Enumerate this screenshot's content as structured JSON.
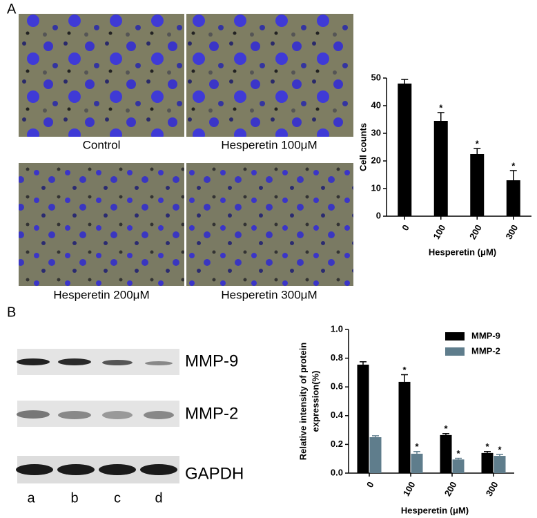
{
  "panels": {
    "a": "A",
    "b": "B"
  },
  "images": {
    "captions": [
      "Control",
      "Hesperetin 100μM",
      "Hesperetin 200μM",
      "Hesperetin 300μM"
    ]
  },
  "blot": {
    "bands": [
      "MMP-9",
      "MMP-2",
      "GAPDH"
    ],
    "lanes": [
      "a",
      "b",
      "c",
      "d"
    ]
  },
  "chart_data": [
    {
      "type": "bar",
      "xlabel": "Hesperetin (μM)",
      "ylabel": "Cell counts",
      "categories": [
        "0",
        "100",
        "200",
        "300"
      ],
      "values": [
        48,
        34.5,
        22.5,
        13
      ],
      "errors": [
        1.5,
        3,
        2,
        3.5
      ],
      "significance": [
        null,
        "*",
        "*",
        "*"
      ],
      "color": "#000000",
      "ylim": [
        0,
        50
      ],
      "yticks": [
        0,
        10,
        20,
        30,
        40,
        50
      ]
    },
    {
      "type": "bar",
      "xlabel": "Hesperetin (μM)",
      "ylabel": [
        "Relative intensity of protein",
        "expression(%)"
      ],
      "categories": [
        "0",
        "100",
        "200",
        "300"
      ],
      "legend": "upper right",
      "series": [
        {
          "name": "MMP-9",
          "color": "#000000",
          "values": [
            0.755,
            0.635,
            0.265,
            0.14
          ],
          "errors": [
            0.02,
            0.05,
            0.01,
            0.01
          ],
          "significance": [
            null,
            "*",
            "*",
            "*"
          ]
        },
        {
          "name": "MMP-2",
          "color": "#5f7d8c",
          "values": [
            0.25,
            0.135,
            0.095,
            0.12
          ],
          "errors": [
            0.01,
            0.015,
            0.008,
            0.01
          ],
          "significance": [
            null,
            "*",
            "*",
            "*"
          ]
        }
      ],
      "ylim": [
        0,
        1
      ],
      "yticks": [
        {
          "value": 0,
          "label": "0.0"
        },
        0.2,
        0.4,
        0.6,
        0.8,
        {
          "value": 1,
          "label": "1.0"
        }
      ]
    }
  ]
}
